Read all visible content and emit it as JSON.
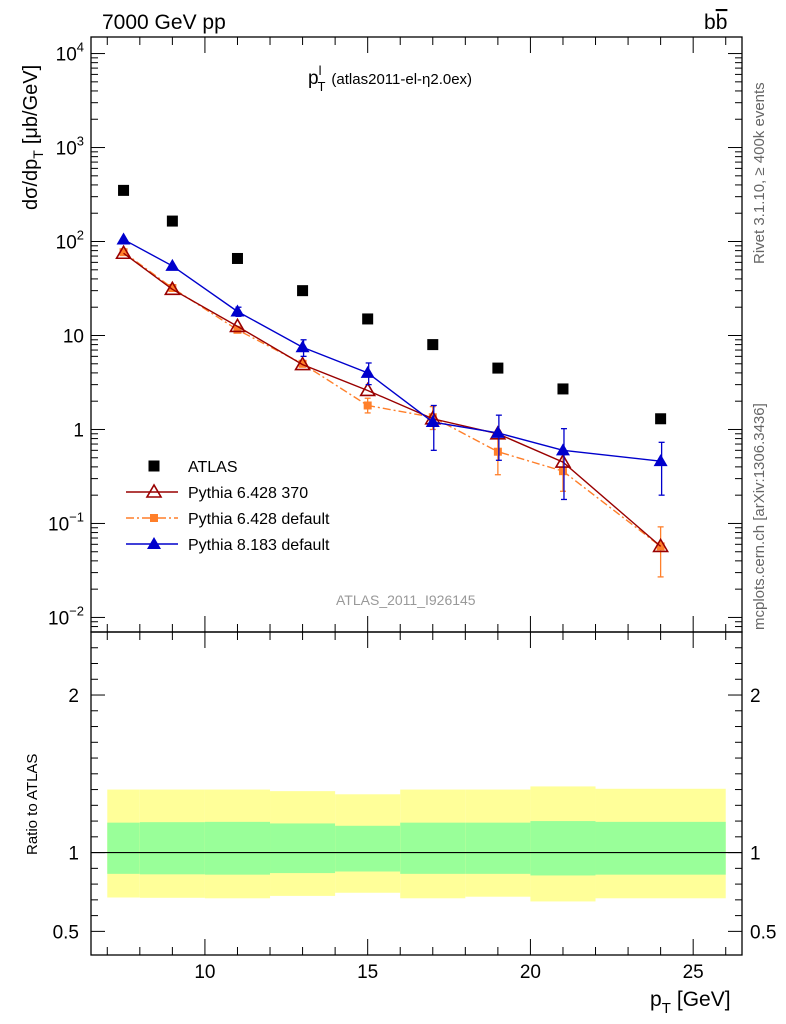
{
  "header": {
    "left": "7000 GeV pp",
    "right_main": "b",
    "right_bar": "b"
  },
  "side_labels": {
    "version": "Rivet 3.1.10, ≥ 400k events",
    "source": "mcplots.cern.ch [arXiv:1306.3436]"
  },
  "chart_data": [
    {
      "type": "scatter",
      "title_main": "p",
      "title_sup": "l",
      "title_sub": "T",
      "title_tail": "(atlas2011-el-η2.0ex)",
      "watermark": "ATLAS_2011_I926145",
      "ylabel": "dσ/dp  [μb/GeV]",
      "ylabel_main": "dσ/dp",
      "ylabel_sub": "T",
      "ylabel_unit": "[μb/GeV]",
      "yscale": "log",
      "ylim": [
        0.007,
        15000
      ],
      "xlim": [
        6.5,
        26.5
      ],
      "y_ticks": [
        {
          "v": 10000,
          "base": "10",
          "exp": "4"
        },
        {
          "v": 1000,
          "base": "10",
          "exp": "3"
        },
        {
          "v": 100,
          "base": "10",
          "exp": "2"
        },
        {
          "v": 10,
          "base": "10",
          "exp": ""
        },
        {
          "v": 1,
          "base": "1",
          "exp": ""
        },
        {
          "v": 0.1,
          "base": "10",
          "exp": "−1"
        },
        {
          "v": 0.01,
          "base": "10",
          "exp": "−2"
        }
      ],
      "legend_position": "bottom-left",
      "series": [
        {
          "name": "ATLAS",
          "marker": "square",
          "color": "#000000",
          "x": [
            7.5,
            9,
            11,
            13,
            15,
            17,
            19,
            21,
            24
          ],
          "y": [
            350,
            165,
            66,
            30,
            15,
            8,
            4.5,
            2.7,
            1.3
          ]
        },
        {
          "name": "Pythia 6.428 370",
          "marker": "open-triangle",
          "color": "#990000",
          "x": [
            7.5,
            9,
            11,
            13,
            15,
            17,
            19,
            21,
            24
          ],
          "y": [
            75,
            31,
            12.5,
            4.9,
            2.6,
            1.3,
            0.9,
            0.45,
            0.057
          ]
        },
        {
          "name": "Pythia 6.428 default",
          "marker": "square-small",
          "color": "#ff7f2a",
          "line": "dashdot",
          "x": [
            7.5,
            9,
            11,
            13,
            15,
            17,
            19,
            21,
            24
          ],
          "y": [
            77,
            32,
            11.5,
            5.0,
            1.8,
            1.35,
            0.58,
            0.36,
            0.057
          ],
          "err_up": [
            0,
            0,
            0,
            0,
            0.35,
            0.4,
            0.3,
            0.18,
            0.035
          ],
          "err_down": [
            0,
            0,
            0,
            0,
            0.3,
            0.35,
            0.25,
            0.14,
            0.03
          ]
        },
        {
          "name": "Pythia 8.183 default",
          "marker": "filled-triangle",
          "color": "#0000cc",
          "x": [
            7.5,
            9,
            11,
            13,
            15,
            17,
            19,
            21,
            24
          ],
          "y": [
            105,
            55,
            18,
            7.5,
            4.0,
            1.2,
            0.92,
            0.6,
            0.46
          ],
          "err_up": [
            0,
            0,
            2.0,
            1.5,
            1.1,
            0.6,
            0.5,
            0.42,
            0.27
          ],
          "err_down": [
            0,
            0,
            2.0,
            1.5,
            1.0,
            0.6,
            0.45,
            0.42,
            0.26
          ]
        }
      ]
    },
    {
      "type": "area",
      "ylabel": "Ratio to ATLAS",
      "xlabel_main": "p",
      "xlabel_sub": "T",
      "xlabel_unit": "[GeV]",
      "ylim": [
        0.35,
        2.4
      ],
      "xlim": [
        6.5,
        26.5
      ],
      "x_ticks": [
        10,
        15,
        20,
        25
      ],
      "y_ticks": [
        0.5,
        1,
        2
      ],
      "reference_line": 1,
      "bins": [
        {
          "lo": 7,
          "hi": 8,
          "green": [
            0.865,
            1.19
          ],
          "yellow": [
            0.715,
            1.4
          ]
        },
        {
          "lo": 8,
          "hi": 10,
          "green": [
            0.862,
            1.193
          ],
          "yellow": [
            0.713,
            1.4
          ]
        },
        {
          "lo": 10,
          "hi": 12,
          "green": [
            0.86,
            1.195
          ],
          "yellow": [
            0.71,
            1.4
          ]
        },
        {
          "lo": 12,
          "hi": 14,
          "green": [
            0.87,
            1.185
          ],
          "yellow": [
            0.725,
            1.39
          ]
        },
        {
          "lo": 14,
          "hi": 16,
          "green": [
            0.88,
            1.17
          ],
          "yellow": [
            0.745,
            1.37
          ]
        },
        {
          "lo": 16,
          "hi": 18,
          "green": [
            0.865,
            1.19
          ],
          "yellow": [
            0.71,
            1.4
          ]
        },
        {
          "lo": 18,
          "hi": 20,
          "green": [
            0.865,
            1.19
          ],
          "yellow": [
            0.72,
            1.4
          ]
        },
        {
          "lo": 20,
          "hi": 22,
          "green": [
            0.855,
            1.2
          ],
          "yellow": [
            0.69,
            1.42
          ]
        },
        {
          "lo": 22,
          "hi": 26,
          "green": [
            0.86,
            1.195
          ],
          "yellow": [
            0.71,
            1.405
          ]
        }
      ]
    }
  ]
}
